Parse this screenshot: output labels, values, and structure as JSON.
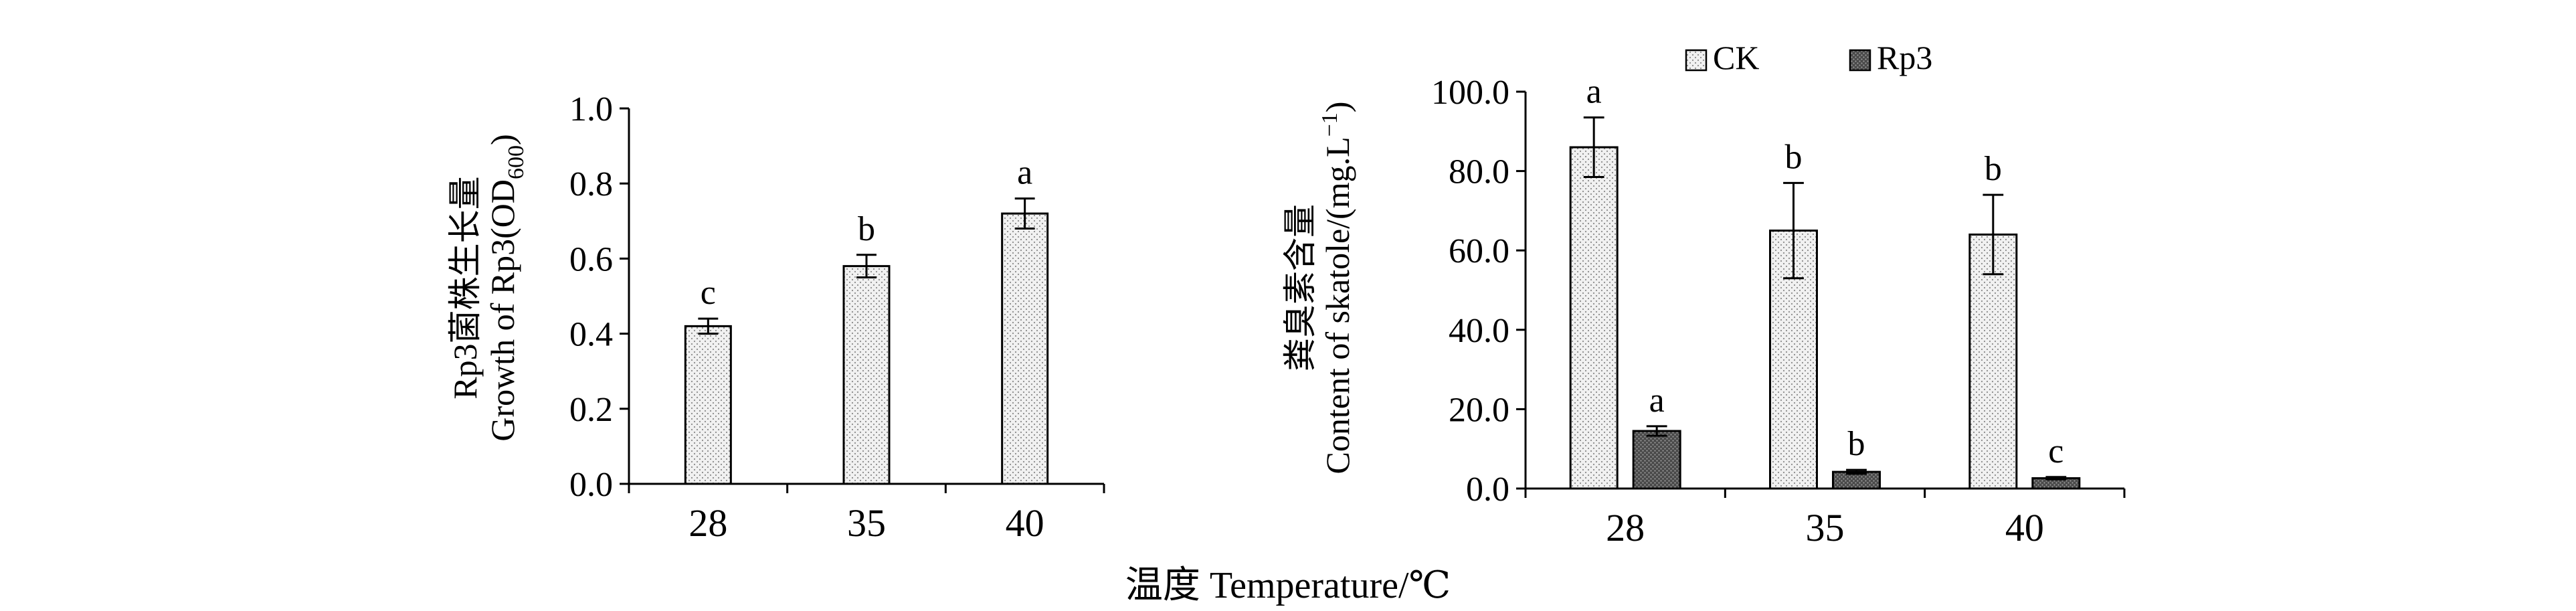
{
  "figure": {
    "shared_xlabel": "温度 Temperature/℃"
  },
  "chart_data": [
    {
      "type": "bar",
      "ylabel_cn": "Rp3菌株生长量",
      "ylabel_en": "Growth of Rp3(OD",
      "ylabel_en_sub": "600",
      "ylabel_en_end": ")",
      "categories": [
        "28",
        "35",
        "40"
      ],
      "series": [
        {
          "values": [
            0.42,
            0.58,
            0.72
          ],
          "errors": [
            0.02,
            0.03,
            0.04
          ],
          "significance": [
            "c",
            "b",
            "a"
          ],
          "pattern": "light-dots"
        }
      ],
      "ylim": [
        0,
        1.0
      ],
      "yticks": [
        0,
        0.2,
        0.4,
        0.6,
        0.8,
        1.0
      ],
      "ytick_labels": [
        "0.0",
        "0.2",
        "0.4",
        "0.6",
        "0.8",
        "1.0"
      ],
      "grid": false
    },
    {
      "type": "bar",
      "ylabel_cn": "粪臭素含量",
      "ylabel_en": "Content of skatole/(mg.L",
      "ylabel_en_sup": "−1",
      "ylabel_en_end": ")",
      "categories": [
        "28",
        "35",
        "40"
      ],
      "series": [
        {
          "name": "CK",
          "values": [
            86.0,
            65.0,
            64.0
          ],
          "errors": [
            7.5,
            12.0,
            10.0
          ],
          "significance": [
            "a",
            "b",
            "b"
          ],
          "pattern": "light-dots"
        },
        {
          "name": "Rp3",
          "values": [
            14.5,
            4.2,
            2.6
          ],
          "errors": [
            1.2,
            0.5,
            0.3
          ],
          "significance": [
            "a",
            "b",
            "c"
          ],
          "pattern": "dark-dots"
        }
      ],
      "ylim": [
        0,
        100
      ],
      "yticks": [
        0,
        20,
        40,
        60,
        80,
        100
      ],
      "ytick_labels": [
        "0.0",
        "20.0",
        "40.0",
        "60.0",
        "80.0",
        "100.0"
      ],
      "legend_position": "top",
      "grid": false
    }
  ]
}
